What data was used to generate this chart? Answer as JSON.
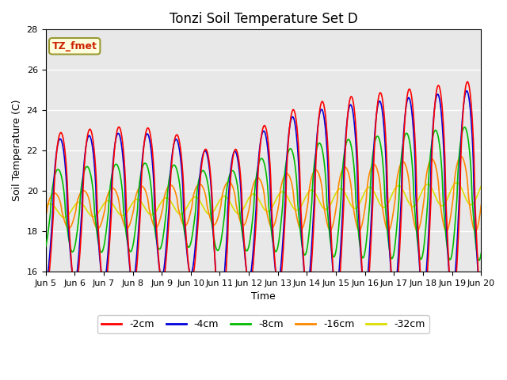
{
  "title": "Tonzi Soil Temperature Set D",
  "xlabel": "Time",
  "ylabel": "Soil Temperature (C)",
  "ylim": [
    16,
    28
  ],
  "xlim": [
    0,
    15
  ],
  "background_color": "#e8e8e8",
  "annotation_text": "TZ_fmet",
  "annotation_color": "#cc2200",
  "annotation_bg": "#ffffdd",
  "series": {
    "-2cm": {
      "color": "#ff0000",
      "lw": 1.2
    },
    "-4cm": {
      "color": "#0000dd",
      "lw": 1.2
    },
    "-8cm": {
      "color": "#00bb00",
      "lw": 1.2
    },
    "-16cm": {
      "color": "#ff8800",
      "lw": 1.2
    },
    "-32cm": {
      "color": "#dddd00",
      "lw": 1.2
    }
  },
  "xtick_labels": [
    "Jun 5",
    "Jun 6",
    "Jun 7",
    "Jun 8",
    "Jun 9",
    "Jun 10",
    "Jun 11",
    "Jun 12",
    "Jun 13",
    "Jun 14",
    "Jun 15",
    "Jun 16",
    "Jun 17",
    "Jun 18",
    "Jun 19",
    "Jun 20"
  ],
  "ytick_values": [
    16,
    18,
    20,
    22,
    24,
    26,
    28
  ],
  "legend_ncol": 5,
  "title_fontsize": 12,
  "label_fontsize": 9,
  "tick_fontsize": 8
}
